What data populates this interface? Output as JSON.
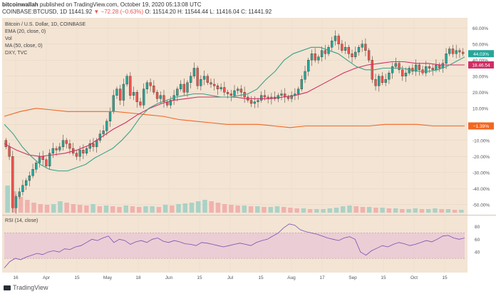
{
  "header": {
    "publisher": "bitcoinwallah",
    "published": "published on TradingView.com, October 19, 2020 05:13:08 UTC",
    "symbol": "COINBASE:BTCUSD, 1D",
    "last": "11441.92",
    "change": "▼ −72.28 (−0.63%)",
    "ohlc": "O: 11514.20  H: 11544.44  L: 11416.04  C: 11441.92"
  },
  "legend": {
    "title": "Bitcoin / U.S. Dollar, 1D, COINBASE",
    "ema": "EMA (20, close, 0)",
    "vol": "Vol",
    "ma": "MA (50, close, 0)",
    "dxy": "DXY, TVC"
  },
  "rsi_label": "RSI (14, close)",
  "footer_brand": "TradingView",
  "colors": {
    "background": "#f3e4d4",
    "up": "#26a69a",
    "down": "#ef5350",
    "ema": "#3aa38a",
    "ma": "#d02e64",
    "dxy": "#f26722",
    "rsi": "#7b4fb0",
    "rsi_band": "#e9c7d5"
  },
  "badges": {
    "btc": "44.03%",
    "ma": "18.46.54",
    "dxy": "−1.39%"
  },
  "chart_data": {
    "type": "candlestick",
    "y_unit": "% change",
    "y_ticks": [
      60,
      50,
      40,
      30,
      20,
      10,
      0,
      -10,
      -20,
      -30,
      -40,
      -50
    ],
    "y_tick_labels": [
      "60.00%",
      "50.00%",
      "40.00%",
      "30.00%",
      "20.00%",
      "10.00%",
      "0.00%",
      "-10.00%",
      "-20.00%",
      "-30.00%",
      "-40.00%",
      "-50.00%"
    ],
    "ylim": [
      -55,
      65
    ],
    "x_labels": [
      "16",
      "Apr",
      "15",
      "May",
      "18",
      "Jun",
      "15",
      "Jul",
      "15",
      "Aug",
      "17",
      "Sep",
      "15",
      "Oct",
      "15"
    ],
    "btc_close": [
      -14,
      -20,
      -52,
      -45,
      -42,
      -38,
      -35,
      -32,
      -28,
      -24,
      -20,
      -22,
      -26,
      -18,
      -15,
      -16,
      -14,
      -10,
      -12,
      -15,
      -18,
      -20,
      -16,
      -18,
      -15,
      -12,
      -14,
      -10,
      -6,
      -4,
      2,
      8,
      18,
      22,
      15,
      25,
      30,
      18,
      20,
      14,
      12,
      22,
      26,
      24,
      20,
      16,
      18,
      14,
      12,
      15,
      18,
      22,
      25,
      20,
      26,
      30,
      35,
      24,
      28,
      30,
      26,
      25,
      24,
      22,
      23,
      20,
      19,
      18,
      21,
      22,
      20,
      17,
      15,
      13,
      14,
      15,
      18,
      17,
      16,
      17,
      16,
      18,
      19,
      17,
      16,
      18,
      19,
      22,
      28,
      33,
      40,
      44,
      40,
      42,
      46,
      44,
      48,
      52,
      55,
      50,
      46,
      48,
      44,
      42,
      45,
      48,
      50,
      46,
      40,
      28,
      24,
      30,
      26,
      28,
      32,
      36,
      38,
      34,
      30,
      32,
      35,
      33,
      37,
      34,
      32,
      36,
      35,
      34,
      37,
      35,
      38,
      44,
      47,
      44,
      46,
      45,
      44
    ],
    "ema20": [
      0,
      -6,
      -14,
      -20,
      -25,
      -28,
      -29,
      -29,
      -27,
      -25,
      -21,
      -18,
      -15,
      -10,
      -4,
      4,
      10,
      13,
      15,
      17,
      18,
      19,
      19,
      18,
      17,
      17,
      18,
      19,
      22,
      28,
      33,
      40,
      44,
      46,
      48,
      48,
      46,
      44,
      40,
      36,
      34,
      34,
      35,
      35,
      35,
      34,
      33,
      33,
      34,
      36,
      39,
      42
    ],
    "ma50": [
      -12,
      -16,
      -19,
      -20,
      -19,
      -18,
      -16,
      -13,
      -8,
      -3,
      1,
      6,
      10,
      13,
      15,
      16,
      17,
      17,
      17,
      17,
      16,
      16,
      16,
      17,
      18,
      20,
      24,
      28,
      32,
      35,
      37,
      38,
      39,
      39,
      38,
      38,
      37,
      37,
      37
    ],
    "dxy": [
      5,
      8,
      10,
      9,
      8,
      8,
      8,
      8,
      7,
      6,
      5,
      3,
      2,
      1,
      0,
      0,
      0,
      -1,
      -2,
      -1,
      -1,
      -1,
      -1,
      -1,
      0,
      0,
      0,
      -1,
      -1,
      -1
    ],
    "volume": [
      38,
      30,
      22,
      18,
      14,
      12,
      11,
      12,
      16,
      14,
      12,
      11,
      10,
      12,
      9,
      10,
      9,
      8,
      10,
      9,
      8,
      9,
      9,
      8,
      11,
      10,
      12,
      13,
      14,
      16,
      18,
      16,
      14,
      12,
      11,
      10,
      10,
      9,
      9,
      8,
      8,
      9,
      8,
      7,
      6,
      6,
      5,
      5,
      5,
      6,
      7,
      9,
      10,
      9,
      8,
      8,
      7,
      7,
      6,
      6,
      5,
      5,
      6,
      5,
      5,
      6,
      5,
      5,
      4,
      4
    ],
    "rsi": [
      15,
      25,
      30,
      28,
      32,
      35,
      38,
      36,
      40,
      42,
      40,
      45,
      44,
      48,
      50,
      55,
      60,
      58,
      62,
      65,
      55,
      60,
      58,
      52,
      56,
      58,
      55,
      60,
      62,
      57,
      55,
      58,
      56,
      53,
      52,
      50,
      55,
      54,
      52,
      50,
      48,
      50,
      52,
      54,
      52,
      50,
      55,
      58,
      60,
      65,
      70,
      78,
      84,
      82,
      75,
      72,
      70,
      68,
      65,
      62,
      60,
      58,
      62,
      64,
      60,
      40,
      35,
      42,
      46,
      50,
      48,
      52,
      55,
      53,
      50,
      52,
      55,
      58,
      56,
      60,
      65,
      66,
      62,
      60,
      62
    ],
    "rsi_ticks": [
      80,
      60,
      40
    ],
    "rsi_ylim": [
      10,
      95
    ]
  }
}
